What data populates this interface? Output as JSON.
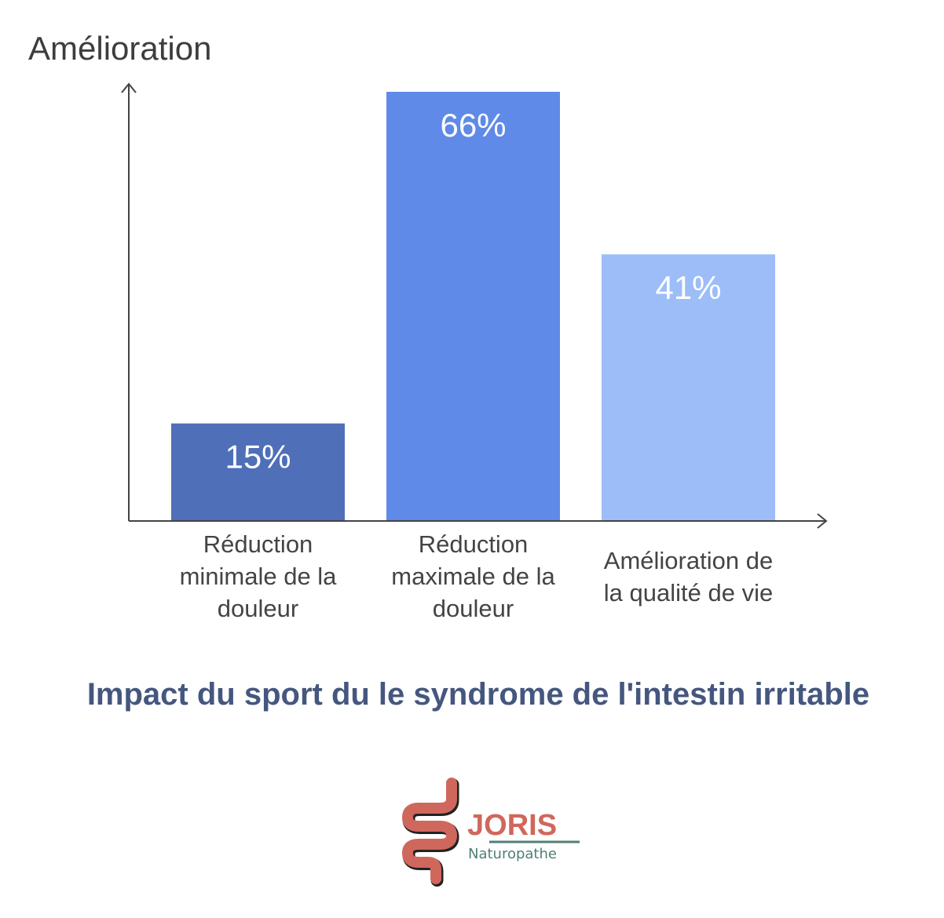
{
  "chart_data": {
    "type": "bar",
    "title": "Impact du sport du le syndrome de l'intestin irritable",
    "ylabel": "Amélioration",
    "xlabel": "",
    "categories": [
      "Réduction minimale de la douleur",
      "Réduction maximale de la douleur",
      "Amélioration de la qualité de vie"
    ],
    "category_lines": [
      [
        "Réduction",
        "minimale de la",
        "douleur"
      ],
      [
        "Réduction",
        "maximale de la",
        "douleur"
      ],
      [
        "Amélioration de",
        "la qualité de vie"
      ]
    ],
    "values": [
      15,
      66,
      41
    ],
    "data_labels": [
      "15%",
      "66%",
      "41%"
    ],
    "colors": [
      "#4f6fb8",
      "#5f8ae8",
      "#9dbdf9"
    ],
    "ylim": [
      0,
      66
    ],
    "grid": false,
    "y_ticks": false
  },
  "logo": {
    "name": "JORIS",
    "subtitle": "Naturopathe",
    "color": "#d0675c",
    "accent": "#4f7f76"
  }
}
